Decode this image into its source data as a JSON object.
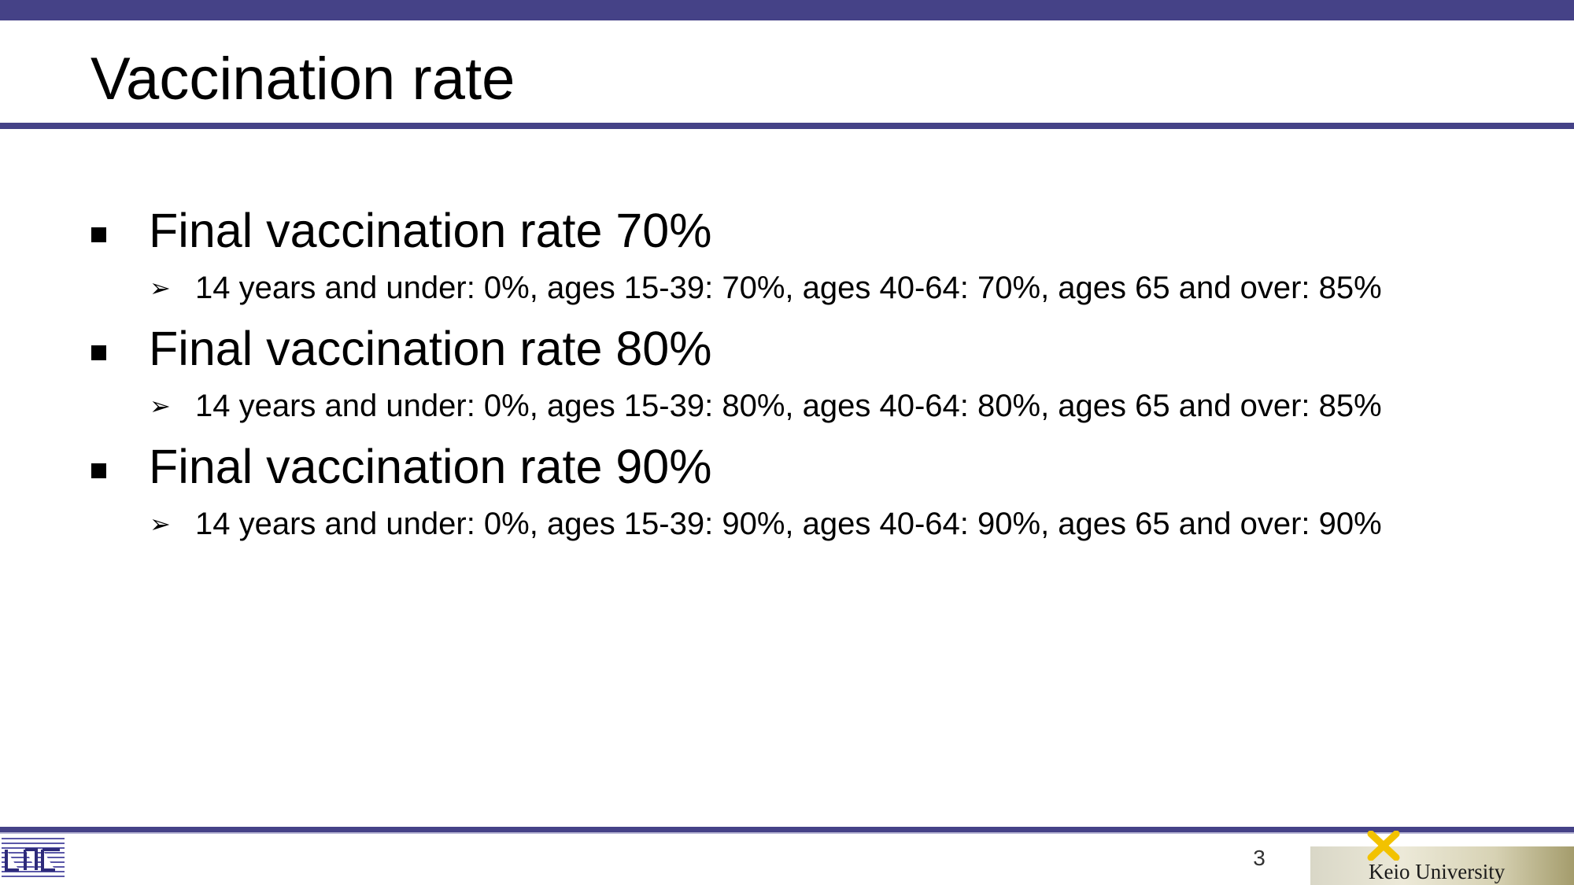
{
  "slide": {
    "title": "Vaccination rate",
    "bullets": [
      {
        "label": "Final vaccination rate 70%",
        "sub": "14 years and under: 0%, ages 15-39: 70%, ages 40-64: 70%, ages 65 and over: 85%"
      },
      {
        "label": "Final vaccination rate 80%",
        "sub": "14 years and under: 0%, ages 15-39: 80%, ages 40-64: 80%, ages 65 and over: 85%"
      },
      {
        "label": "Final vaccination rate 90%",
        "sub": "14 years and under: 0%, ages 15-39: 90%, ages 40-64: 90%, ages 65 and over: 90%"
      }
    ],
    "bullet_marker_icon": "square-bullet-icon",
    "sub_marker_icon": "arrowhead-bullet-icon",
    "sub_marker_glyph": "➢"
  },
  "footer": {
    "page_number": "3",
    "university": "Keio University",
    "lab_logo_icon": "lab-logo-icon",
    "university_logo_icon": "keio-pen-icon"
  },
  "colors": {
    "accent": "#454287",
    "keio_gold": "#f2c200"
  }
}
